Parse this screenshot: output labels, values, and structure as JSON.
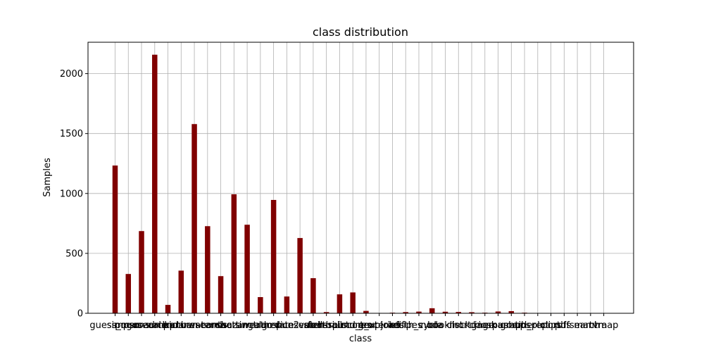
{
  "chart_data": {
    "type": "bar",
    "title": "class distribution",
    "xlabel": "class",
    "ylabel": "Samples",
    "ylim": [
      0,
      2262
    ],
    "yticks": [
      0,
      500,
      1000,
      1500,
      2000
    ],
    "grid": true,
    "bar_color": "#800000",
    "categories": [
      "guess_mac",
      "simpsons",
      "pogosearch",
      "roadmap",
      "calendar",
      "kanban",
      "picturesearch",
      "waterms",
      "contacts",
      "shazam",
      "sortingalgo",
      "weather",
      "translate",
      "dice2",
      "punsearch",
      "voters",
      "stellarium",
      "footballscores",
      "sound_text",
      "picture_upload",
      "groceries",
      "jokes",
      "recipes",
      "fifth_cycle",
      "noda",
      "booklist",
      "clock",
      "mortgage",
      "kiosk",
      "cinemaroom",
      "pushups",
      "graph_plot",
      "tidereport",
      "clips",
      "dfs",
      "pdfsearch",
      "mantra",
      "tvmap"
    ],
    "values": [
      1233,
      328,
      686,
      2158,
      70,
      356,
      1579,
      727,
      310,
      993,
      739,
      135,
      946,
      140,
      628,
      293,
      10,
      158,
      174,
      20,
      3,
      5,
      10,
      14,
      42,
      13,
      11,
      9,
      5,
      15,
      18,
      5,
      0,
      0,
      0,
      0,
      0,
      0
    ]
  }
}
